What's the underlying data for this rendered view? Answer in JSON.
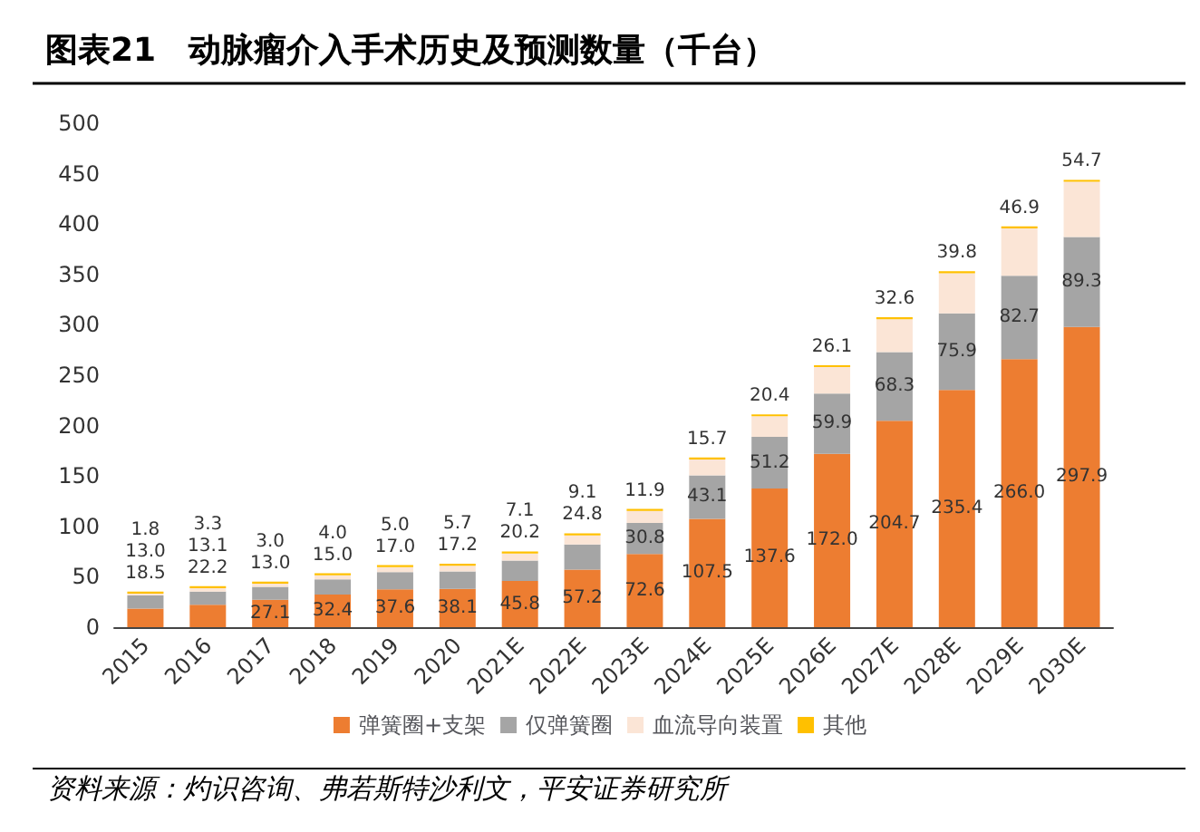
{
  "chart_data": {
    "type": "bar",
    "title": "图表21　动脉瘤介入手术历史及预测数量（千台）",
    "stacked": true,
    "categories": [
      "2015",
      "2016",
      "2017",
      "2018",
      "2019",
      "2020",
      "2021E",
      "2022E",
      "2023E",
      "2024E",
      "2025E",
      "2026E",
      "2027E",
      "2028E",
      "2029E",
      "2030E"
    ],
    "series": [
      {
        "name": "弹簧圈+支架",
        "color": "#ed7d31",
        "values": [
          18.5,
          22.2,
          27.1,
          32.4,
          37.6,
          38.1,
          45.8,
          57.2,
          72.6,
          107.5,
          137.6,
          172.0,
          204.7,
          235.4,
          266.0,
          297.9
        ],
        "value_labels": [
          "18.5",
          "22.2",
          "27.1",
          "32.4",
          "37.6",
          "38.1",
          "45.8",
          "57.2",
          "72.6",
          "107.5",
          "137.6",
          "172.0",
          "204.7",
          "235.4",
          "266.0",
          "297.9"
        ]
      },
      {
        "name": "仅弹簧圈",
        "color": "#a5a5a5",
        "values": [
          13.0,
          13.1,
          13.0,
          15.0,
          17.0,
          17.2,
          20.2,
          24.8,
          30.8,
          43.1,
          51.2,
          59.9,
          68.3,
          75.9,
          82.7,
          89.3
        ],
        "value_labels": [
          "13.0",
          "13.1",
          "13.0",
          "15.0",
          "17.0",
          "17.2",
          "20.2",
          "24.8",
          "30.8",
          "43.1",
          "51.2",
          "59.9",
          "68.3",
          "75.9",
          "82.7",
          "89.3"
        ]
      },
      {
        "name": "血流导向装置",
        "color": "#fbe5d6",
        "values": [
          1.8,
          3.3,
          3.0,
          4.0,
          5.0,
          5.7,
          7.1,
          9.1,
          11.9,
          15.7,
          20.4,
          26.1,
          32.6,
          39.8,
          46.9,
          54.7
        ],
        "value_labels": [
          "1.8",
          "3.3",
          "3.0",
          "4.0",
          "5.0",
          "5.7",
          "7.1",
          "9.1",
          "11.9",
          "15.7",
          "20.4",
          "26.1",
          "32.6",
          "39.8",
          "46.9",
          "54.7"
        ]
      },
      {
        "name": "其他",
        "color": "#ffc000",
        "values": [
          2,
          2,
          2,
          2,
          2,
          2,
          2,
          2,
          2,
          2,
          2,
          2,
          2,
          2,
          2,
          2
        ]
      }
    ],
    "ylim": [
      0,
      500
    ],
    "yticks": [
      0,
      50,
      100,
      150,
      200,
      250,
      300,
      350,
      400,
      450,
      500
    ],
    "grid": false,
    "legend": "bottom",
    "annotations": [
      "资料来源：灼识咨询、弗若斯特沙利文，平安证券研究所"
    ]
  }
}
